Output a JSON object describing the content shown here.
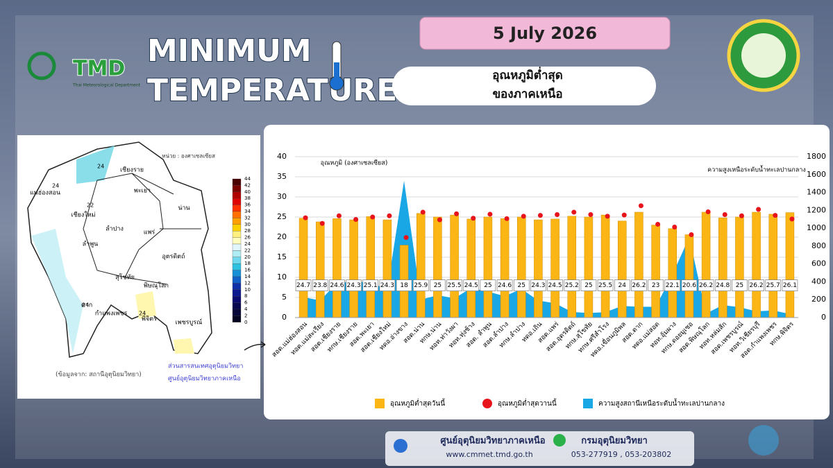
{
  "header": {
    "title_line1": "MINIMUM",
    "title_line2": "TEMPERATURE",
    "date": "5 July 2026",
    "subtitle_line1": "อุณหภูมิต่ำสุด",
    "subtitle_line2": "ของภาคเหนือ",
    "logo_text": "TMD",
    "logo_caption": "Thai Meteorological Department"
  },
  "map": {
    "unit": "หน่วย : องศาเซลเซียส",
    "source": "(ข้อมูลจาก: สถานีอุตุนิยมวิทยา)",
    "credit_line1": "ส่วนสารสนเทศอุตุนิยมวิทยา",
    "credit_line2": "ศูนย์อุตุนิยมวิทยาภาคเหนือ",
    "provinces": [
      "เชียงราย",
      "พะเยา",
      "น่าน",
      "แม่ฮ่องสอน",
      "เชียงใหม่",
      "ลำปาง",
      "แพร่",
      "ลำพูน",
      "อุตรดิตถ์",
      "สุโขทัย",
      "พิษณุโลก",
      "ตาก",
      "กำแพงเพชร",
      "พิจิตร",
      "เพชรบูรณ์"
    ],
    "isotherm_labels": [
      24,
      24,
      22,
      24,
      24
    ],
    "colorbar": {
      "ticks": [
        44,
        42,
        40,
        38,
        36,
        34,
        32,
        30,
        28,
        26,
        24,
        22,
        20,
        18,
        16,
        14,
        12,
        10,
        8,
        6,
        4,
        2,
        0
      ],
      "colors": [
        "#4a0000",
        "#7a0000",
        "#b00000",
        "#e00000",
        "#ff3000",
        "#ff7000",
        "#ffa000",
        "#ffd000",
        "#fff080",
        "#fffcc0",
        "#e0f6fa",
        "#b0ecf4",
        "#70d8ec",
        "#30c0e0",
        "#1890d8",
        "#1060c8",
        "#1030a8",
        "#0c1890",
        "#0a0a70",
        "#080850",
        "#060638",
        "#040420"
      ]
    }
  },
  "chart_data": {
    "type": "bar",
    "ylabel": "อุณหภูมิ (องศาเซลเซียส)",
    "y2label": "ความสูงเหนือระดับน้ำทะเลปานกลาง",
    "categories": [
      "สอต.แม่ฮ่องสอน",
      "ทอต.แม่สะเรียง",
      "สอต.เชียงราย",
      "ทกษ.เชียงราย",
      "สอต.พะเยา",
      "สอต.เชียงใหม่",
      "ทดอ.อ่างขาง",
      "สอต.น่าน",
      "ทกษ.น่าน",
      "ทอท.ท่าวังผา",
      "ทอท.ทุ่งช้าง",
      "สอต. ลำพูน",
      "สอต.ลำปาง",
      "ทกษ.ลำปาง",
      "ทดอ.เถิน",
      "สอต.แพร่",
      "สอต.อุตรดิตถ์",
      "ทกษ.สุโขทัย",
      "ทกษ.ศรีสำโรง",
      "ทดอ.เขื่อนภูมิพล",
      "สอต.ตาก",
      "ทดอ.แม่สอด",
      "ทอท.อุ้มผาง",
      "ทกษ.ดอยมูเซอ",
      "สอต.พิษณุโลก",
      "ทอท.หล่มสัก",
      "สอต.เพชรบูรณ์",
      "ทอท.วิเชียรบุรี",
      "สอต.กำแพงเพชร",
      "ทกษ.พิจิตร"
    ],
    "series": [
      {
        "name": "อุณหภูมิต่ำสุดวันนี้",
        "mark": "bar",
        "color": "#fbb616",
        "values": [
          24.7,
          23.8,
          24.6,
          24.3,
          25.1,
          24.3,
          18,
          25.9,
          25,
          25.5,
          24.5,
          25,
          24.6,
          25,
          24.3,
          24.5,
          25.2,
          25,
          25.5,
          24,
          26.2,
          23,
          22.1,
          20.6,
          26.2,
          24.8,
          25,
          26.2,
          25.7,
          26.1
        ]
      },
      {
        "name": "อุณหภูมิต่ำสุดวานนี้",
        "mark": "dot",
        "color": "#e8141c",
        "values": [
          24.8,
          23.4,
          25.3,
          24.4,
          25.0,
          25.3,
          19.9,
          26.2,
          24.3,
          25.8,
          24.7,
          25.7,
          24.6,
          25.2,
          25.4,
          25.6,
          26.2,
          25.6,
          25.2,
          25.5,
          27.8,
          23.2,
          22.5,
          20.6,
          26.3,
          25.6,
          25.3,
          26.9,
          25.4,
          24.5
        ]
      },
      {
        "name": "ความสูงสถานีเหนือระดับน้ำทะเลปานกลาง",
        "mark": "area",
        "axis": "y2",
        "color": "#1aa7e6",
        "values": [
          230,
          190,
          390,
          400,
          395,
          312,
          1530,
          200,
          250,
          215,
          330,
          290,
          240,
          320,
          190,
          160,
          63,
          50,
          60,
          130,
          120,
          120,
          480,
          900,
          45,
          140,
          115,
          70,
          80,
          40
        ]
      }
    ],
    "ylim": [
      0,
      40
    ],
    "yticks": [
      0,
      5,
      10,
      15,
      20,
      25,
      30,
      35,
      40
    ],
    "y2lim": [
      0,
      1800
    ],
    "y2ticks": [
      0,
      200,
      400,
      600,
      800,
      1000,
      1200,
      1400,
      1600,
      1800
    ],
    "grid": true
  },
  "footer": {
    "center_name": "ศูนย์อุตุนิยมวิทยาภาคเหนือ",
    "website": "www.cmmet.tmd.go.th",
    "department": "กรมอุตุนิยมวิทยา",
    "phones": "053-277919 , 053-203802"
  }
}
